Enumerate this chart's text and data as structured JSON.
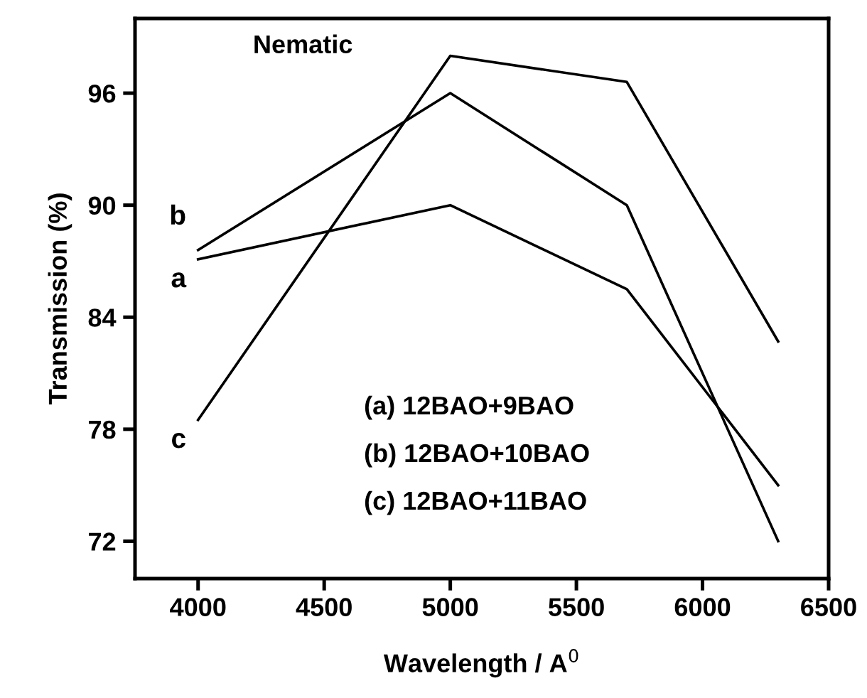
{
  "chart_data": {
    "type": "line",
    "xlabel": "Wavelength / A$^{0}$",
    "ylabel": "Transmission (%)",
    "x": [
      4000,
      5000,
      5700,
      6300
    ],
    "series": [
      {
        "name": "a",
        "color": "#000000",
        "values": [
          87.1,
          90.0,
          85.5,
          75.0
        ]
      },
      {
        "name": "b",
        "color": "#000000",
        "values": [
          87.6,
          96.0,
          90.0,
          72.0
        ]
      },
      {
        "name": "c",
        "color": "#000000",
        "values": [
          78.5,
          98.0,
          96.6,
          82.7
        ]
      }
    ],
    "xlim": [
      3750,
      6500
    ],
    "ylim": [
      70,
      100
    ],
    "xticks": [
      4000,
      4500,
      5000,
      5500,
      6000,
      6500
    ],
    "yticks": [
      72,
      78,
      84,
      90,
      96
    ],
    "grid": false,
    "legend": false,
    "marker": "none",
    "line_style": "solid",
    "annotations": [
      "Nematic",
      "(a) 12BAO+9BAO",
      "(b) 12BAO+10BAO",
      "(c) 12BAO+11BAO"
    ]
  }
}
